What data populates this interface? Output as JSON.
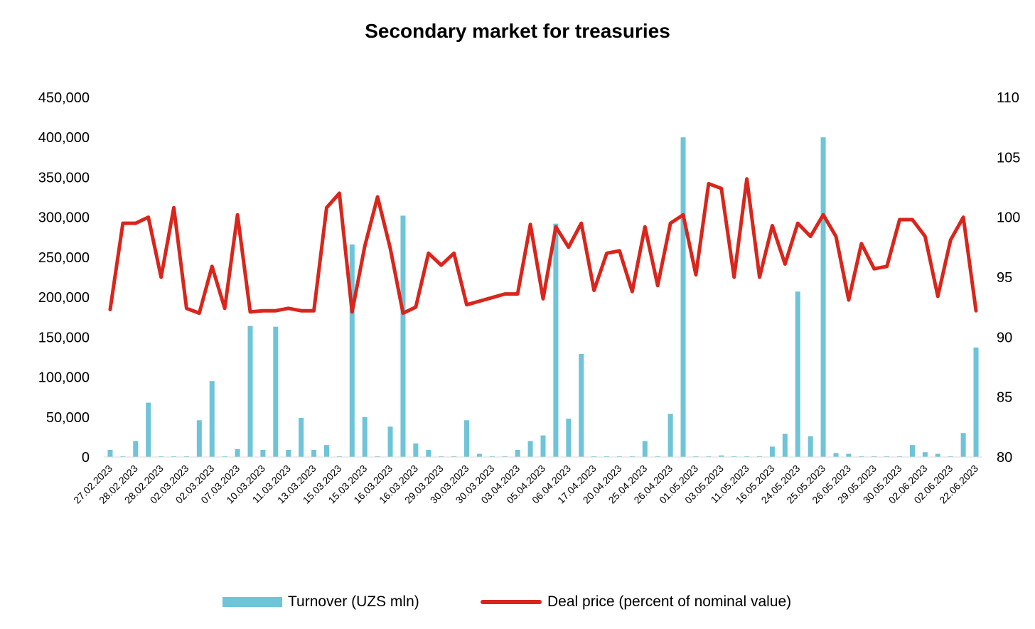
{
  "chart_data": {
    "type": "bar+line",
    "title": "Secondary market for treasuries",
    "categories": [
      "27.02.2023",
      "",
      "28.02.2023",
      "",
      "28.02.2023",
      "",
      "02.03.2023",
      "",
      "02.03.2023",
      "",
      "07.03.2023",
      "",
      "10.03.2023",
      "",
      "11.03.2023",
      "",
      "13.03.2023",
      "",
      "15.03.2023",
      "",
      "15.03.2023",
      "",
      "16.03.2023",
      "",
      "16.03.2023",
      "",
      "29.03.2023",
      "",
      "30.03.2023",
      "",
      "30.03.2023",
      "",
      "03.04.2023",
      "",
      "05.04.2023",
      "",
      "06.04.2023",
      "",
      "17.04.2023",
      "",
      "20.04.2023",
      "",
      "25.04.2023",
      "",
      "26.04.2023",
      "",
      "01.05.2023",
      "",
      "03.05.2023",
      "",
      "11.05.2023",
      "",
      "16.05.2023",
      "",
      "24.05.2023",
      "",
      "25.05.2023",
      "",
      "26.05.2023",
      "",
      "29.05.2023",
      "",
      "30.05.2023",
      "",
      "02.06.2023",
      "",
      "02.06.2023",
      "",
      "22.06.2023"
    ],
    "x_tick_labels": [
      "27.02.2023",
      "28.02.2023",
      "28.02.2023",
      "02.03.2023",
      "02.03.2023",
      "07.03.2023",
      "10.03.2023",
      "11.03.2023",
      "13.03.2023",
      "15.03.2023",
      "15.03.2023",
      "16.03.2023",
      "16.03.2023",
      "29.03.2023",
      "30.03.2023",
      "30.03.2023",
      "03.04.2023",
      "05.04.2023",
      "06.04.2023",
      "17.04.2023",
      "20.04.2023",
      "25.04.2023",
      "26.04.2023",
      "01.05.2023",
      "03.05.2023",
      "11.05.2023",
      "16.05.2023",
      "24.05.2023",
      "25.05.2023",
      "26.05.2023",
      "29.05.2023",
      "30.05.2023",
      "02.06.2023",
      "02.06.2023",
      "22.06.2023"
    ],
    "series": [
      {
        "name": "Turnover (UZS mln)",
        "type": "bar",
        "axis": "left",
        "color": "#6ec4d8",
        "values": [
          9000,
          1000,
          20000,
          68000,
          1000,
          1000,
          1000,
          46000,
          95000,
          1000,
          10000,
          164000,
          9000,
          163000,
          9000,
          49000,
          9000,
          15000,
          1000,
          266000,
          50000,
          1000,
          38000,
          302000,
          17000,
          9000,
          1000,
          1000,
          46000,
          4000,
          1000,
          1000,
          9000,
          20000,
          27000,
          292000,
          48000,
          129000,
          1000,
          1000,
          1000,
          1000,
          20000,
          1000,
          54000,
          400000,
          1000,
          1000,
          2000,
          1000,
          1000,
          1000,
          13000,
          29000,
          207000,
          26000,
          400000,
          5000,
          4000,
          1000,
          1000,
          1000,
          1000,
          15000,
          6000,
          4000,
          1000,
          30000,
          137000
        ]
      },
      {
        "name": "Deal price (percent of nominal value)",
        "type": "line",
        "axis": "right",
        "color": "#d9261c",
        "values": [
          92.3,
          99.5,
          99.5,
          100.0,
          95.0,
          100.8,
          92.4,
          92.0,
          95.9,
          92.4,
          100.2,
          92.1,
          92.2,
          92.2,
          92.4,
          92.2,
          92.2,
          100.8,
          102.0,
          92.1,
          97.6,
          101.7,
          97.4,
          92.0,
          92.5,
          97.0,
          96.0,
          97.0,
          92.7,
          93.0,
          93.3,
          93.6,
          93.6,
          99.4,
          93.2,
          99.2,
          97.5,
          99.5,
          93.9,
          97.0,
          97.2,
          93.8,
          99.2,
          94.3,
          99.5,
          100.2,
          95.2,
          102.8,
          102.4,
          95.0,
          103.2,
          95.0,
          99.3,
          96.1,
          99.5,
          98.4,
          100.2,
          98.4,
          93.1,
          97.8,
          95.7,
          95.9,
          99.8,
          99.8,
          98.4,
          93.4,
          98.1,
          100.0,
          92.2
        ]
      }
    ],
    "y_left": {
      "min": 0,
      "max": 450000,
      "step": 50000,
      "tick_labels": [
        "0",
        "50,000",
        "100,000",
        "150,000",
        "200,000",
        "250,000",
        "300,000",
        "350,000",
        "400,000",
        "450,000"
      ]
    },
    "y_right": {
      "min": 80,
      "max": 110,
      "step": 5,
      "tick_labels": [
        "80",
        "85",
        "90",
        "95",
        "100",
        "105",
        "110"
      ]
    },
    "legend_position": "bottom"
  },
  "legend": {
    "bar_label": "Turnover (UZS mln)",
    "line_label": "Deal price (percent of nominal value)",
    "bar_color": "#6ec4d8",
    "line_color": "#d9261c"
  }
}
